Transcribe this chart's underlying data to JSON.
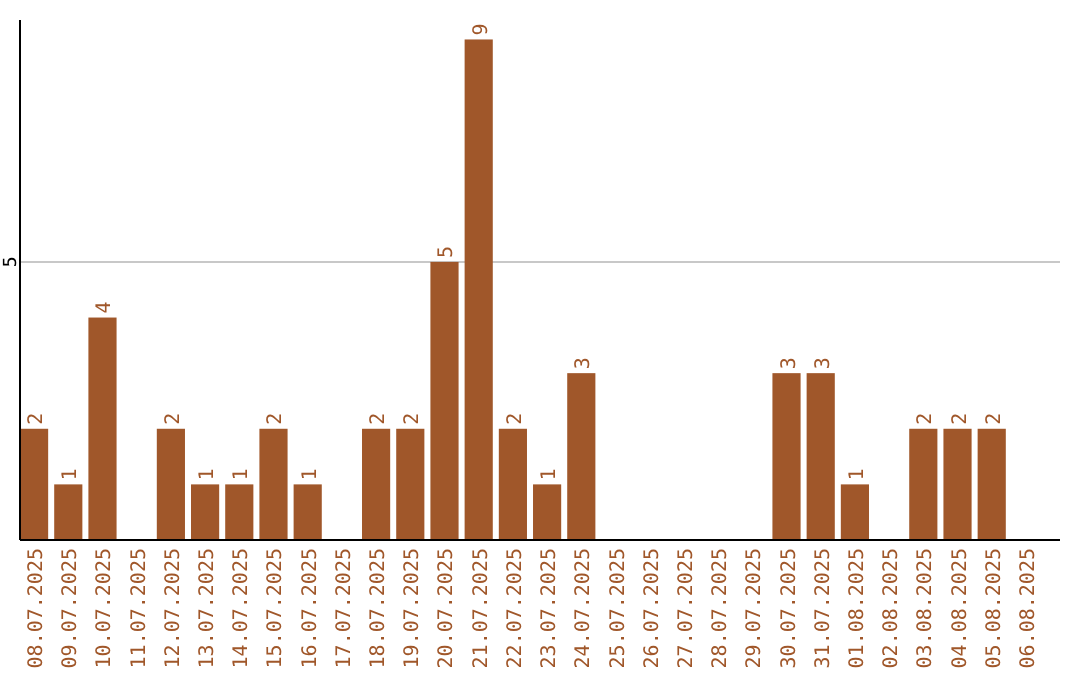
{
  "chart_data": {
    "type": "bar",
    "categories": [
      "08.07.2025",
      "09.07.2025",
      "10.07.2025",
      "11.07.2025",
      "12.07.2025",
      "13.07.2025",
      "14.07.2025",
      "15.07.2025",
      "16.07.2025",
      "17.07.2025",
      "18.07.2025",
      "19.07.2025",
      "20.07.2025",
      "21.07.2025",
      "22.07.2025",
      "23.07.2025",
      "24.07.2025",
      "25.07.2025",
      "26.07.2025",
      "27.07.2025",
      "28.07.2025",
      "29.07.2025",
      "30.07.2025",
      "31.07.2025",
      "01.08.2025",
      "02.08.2025",
      "03.08.2025",
      "04.08.2025",
      "05.08.2025",
      "06.08.2025"
    ],
    "values": [
      2,
      1,
      4,
      0,
      2,
      1,
      1,
      2,
      1,
      0,
      2,
      2,
      5,
      9,
      2,
      1,
      3,
      0,
      0,
      0,
      0,
      0,
      3,
      3,
      1,
      0,
      2,
      2,
      2,
      0
    ],
    "value_labels": [
      "2",
      "1",
      "4",
      null,
      "2",
      "1",
      "1",
      "2",
      "1",
      null,
      "2",
      "2",
      "5",
      "9",
      "2",
      "1",
      "3",
      null,
      null,
      null,
      null,
      null,
      "3",
      "3",
      "1",
      null,
      "2",
      "2",
      "2",
      null
    ],
    "color": "#a0572a",
    "ylim": [
      0,
      9.35
    ],
    "yticks": [
      5
    ],
    "grid": "y"
  }
}
